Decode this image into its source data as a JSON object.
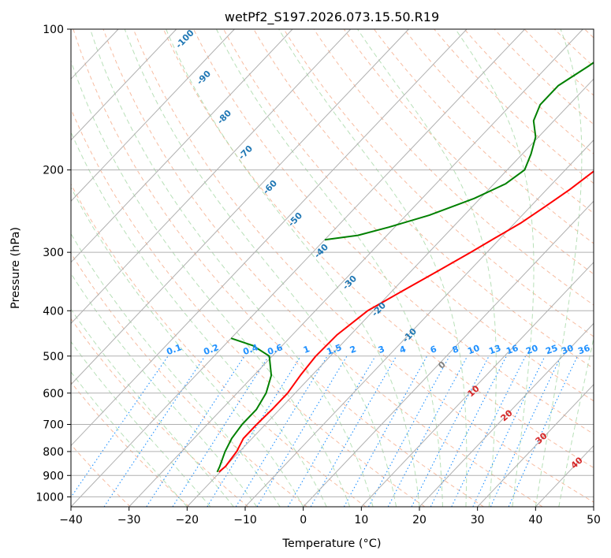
{
  "chart_data": {
    "type": "line",
    "subtype": "skew-t log-p diagram",
    "title": "wetPf2_S197.2026.073.15.50.R19",
    "xlabel": "Temperature (°C)",
    "ylabel": "Pressure (hPa)",
    "xlim": [
      -40,
      50
    ],
    "ylim": [
      1050,
      100
    ],
    "x_ticks": [
      -40,
      -30,
      -20,
      -10,
      0,
      10,
      20,
      30,
      40,
      50
    ],
    "y_ticks": [
      100,
      200,
      300,
      400,
      500,
      600,
      700,
      800,
      900,
      1000
    ],
    "grid": true,
    "series": [
      {
        "name": "Temperature",
        "color": "#ff0000",
        "points": [
          {
            "t": -20.2,
            "p": 885
          },
          {
            "t": -20.0,
            "p": 860
          },
          {
            "t": -20.5,
            "p": 800
          },
          {
            "t": -21.5,
            "p": 750
          },
          {
            "t": -21.5,
            "p": 700
          },
          {
            "t": -21.3,
            "p": 650
          },
          {
            "t": -21.3,
            "p": 600
          },
          {
            "t": -22.0,
            "p": 550
          },
          {
            "t": -22.5,
            "p": 500
          },
          {
            "t": -22.3,
            "p": 450
          },
          {
            "t": -21.0,
            "p": 400
          },
          {
            "t": -18.0,
            "p": 360
          },
          {
            "t": -15.5,
            "p": 330
          },
          {
            "t": -12.8,
            "p": 300
          },
          {
            "t": -11.0,
            "p": 280
          },
          {
            "t": -9.0,
            "p": 260
          },
          {
            "t": -7.5,
            "p": 240
          },
          {
            "t": -6.0,
            "p": 220
          },
          {
            "t": -4.8,
            "p": 200
          },
          {
            "t": -4.5,
            "p": 180
          },
          {
            "t": -4.5,
            "p": 160
          },
          {
            "t": -5.0,
            "p": 140
          },
          {
            "t": -6.0,
            "p": 130
          },
          {
            "t": -7.5,
            "p": 120
          },
          {
            "t": -9.0,
            "p": 110
          },
          {
            "t": -10.0,
            "p": 100
          }
        ]
      },
      {
        "name": "Dewpoint",
        "color": "#008000",
        "points": [
          {
            "t": -20.5,
            "p": 885
          },
          {
            "t": -21.0,
            "p": 860
          },
          {
            "t": -22.5,
            "p": 800
          },
          {
            "t": -23.5,
            "p": 750
          },
          {
            "t": -24.0,
            "p": 700
          },
          {
            "t": -24.0,
            "p": 650
          },
          {
            "t": -25.0,
            "p": 600
          },
          {
            "t": -27.0,
            "p": 550
          },
          {
            "t": -30.5,
            "p": 500
          },
          {
            "t": -35.0,
            "p": 475
          },
          {
            "t": -40.0,
            "p": 458
          }
        ]
      },
      {
        "name": "Dewpoint (upper)",
        "color": "#008000",
        "points": [
          {
            "t": -40.0,
            "p": 282
          },
          {
            "t": -35.0,
            "p": 276
          },
          {
            "t": -31.0,
            "p": 265
          },
          {
            "t": -26.0,
            "p": 250
          },
          {
            "t": -21.0,
            "p": 230
          },
          {
            "t": -18.0,
            "p": 214
          },
          {
            "t": -17.0,
            "p": 200
          },
          {
            "t": -18.5,
            "p": 185
          },
          {
            "t": -20.5,
            "p": 170
          },
          {
            "t": -23.5,
            "p": 157
          },
          {
            "t": -25.0,
            "p": 145
          },
          {
            "t": -25.0,
            "p": 132
          },
          {
            "t": -23.0,
            "p": 120
          },
          {
            "t": -21.5,
            "p": 110
          },
          {
            "t": -21.0,
            "p": 100
          }
        ]
      }
    ],
    "isotherm_labels": [
      "-100",
      "-90",
      "-80",
      "-70",
      "-60",
      "-50",
      "-40",
      "-30",
      "-20",
      "-10"
    ],
    "mixing_ratio_labels": [
      "0.1",
      "0.2",
      "0.4",
      "0.6",
      "1",
      "1.5",
      "2",
      "3",
      "4",
      "6",
      "8",
      "10",
      "13",
      "16",
      "20",
      "25",
      "30",
      "36"
    ],
    "moist_adiabat_labels": [
      "0",
      "10",
      "20",
      "30",
      "40"
    ],
    "colors": {
      "isotherm": "#1f77b4",
      "mixing_ratio": "#1e90ff",
      "dry_adiabat": "#ff7f50",
      "moist_adiabat": "#2e8b57",
      "moist_label": "#d62728",
      "zero_label": "#808080"
    }
  }
}
